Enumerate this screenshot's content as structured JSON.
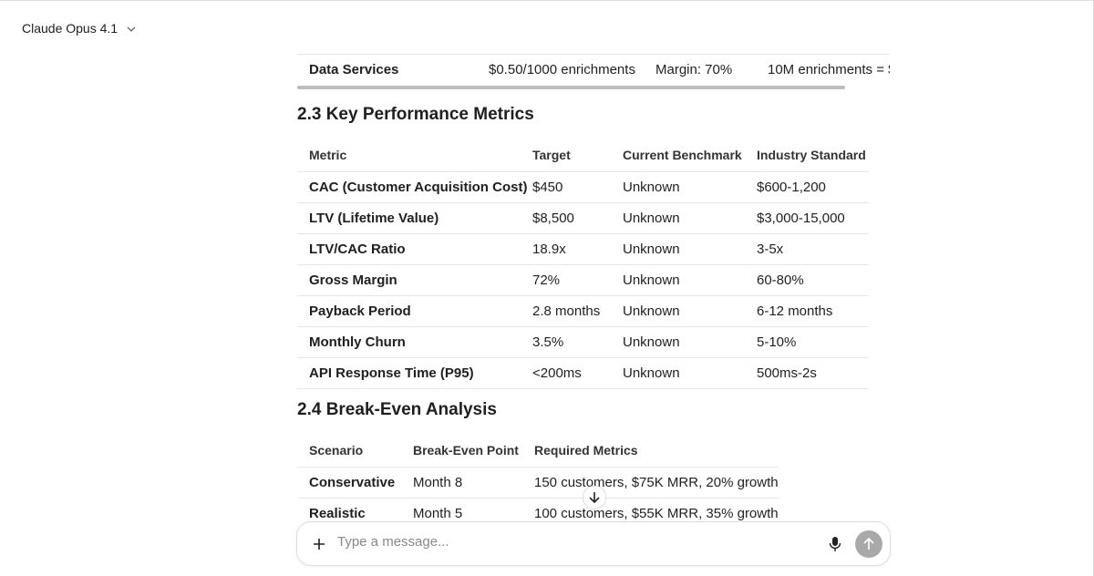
{
  "header": {
    "model": "Claude Opus 4.1"
  },
  "top_table": {
    "row": [
      "Data Services",
      "$0.50/1000 enrichments",
      "Margin: 70%",
      "10M enrichments = $"
    ]
  },
  "sections": [
    {
      "heading": "2.3 Key Performance Metrics",
      "table": {
        "columns": [
          "Metric",
          "Target",
          "Current Benchmark",
          "Industry Standard"
        ],
        "rows": [
          [
            "CAC (Customer Acquisition Cost)",
            "$450",
            "Unknown",
            "$600-1,200"
          ],
          [
            "LTV (Lifetime Value)",
            "$8,500",
            "Unknown",
            "$3,000-15,000"
          ],
          [
            "LTV/CAC Ratio",
            "18.9x",
            "Unknown",
            "3-5x"
          ],
          [
            "Gross Margin",
            "72%",
            "Unknown",
            "60-80%"
          ],
          [
            "Payback Period",
            "2.8 months",
            "Unknown",
            "6-12 months"
          ],
          [
            "Monthly Churn",
            "3.5%",
            "Unknown",
            "5-10%"
          ],
          [
            "API Response Time (P95)",
            "<200ms",
            "Unknown",
            "500ms-2s"
          ]
        ]
      }
    },
    {
      "heading": "2.4 Break-Even Analysis",
      "table": {
        "columns": [
          "Scenario",
          "Break-Even Point",
          "Required Metrics"
        ],
        "rows": [
          [
            "Conservative",
            "Month 8",
            "150 customers, $75K MRR, 20% growth"
          ],
          [
            "Realistic",
            "Month 5",
            "100 customers, $55K MRR, 35% growth"
          ]
        ]
      }
    }
  ],
  "composer": {
    "placeholder": "Type a message..."
  }
}
